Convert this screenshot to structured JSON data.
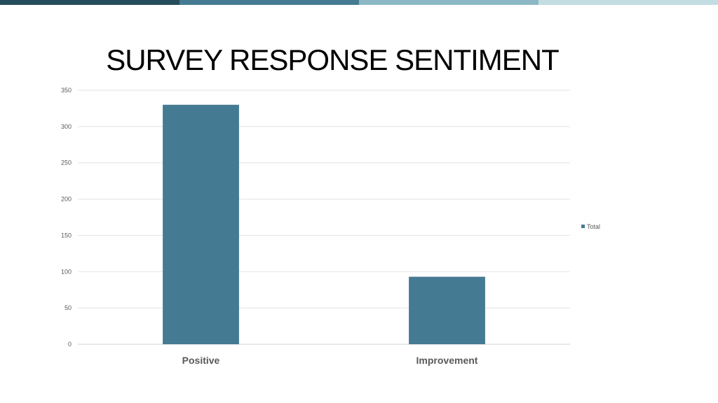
{
  "slide": {
    "accent_colors": [
      "#264d5b",
      "#457b92",
      "#8bb8c4",
      "#c3dde3"
    ]
  },
  "chart_data": {
    "type": "bar",
    "title": "SURVEY RESPONSE SENTIMENT",
    "categories": [
      "Positive",
      "Improvement"
    ],
    "series": [
      {
        "name": "Total",
        "values": [
          330,
          93
        ],
        "color": "#457b92"
      }
    ],
    "ylim": [
      0,
      350
    ],
    "yticks": [
      "0",
      "50",
      "100",
      "150",
      "200",
      "250",
      "300",
      "350"
    ],
    "grid": true,
    "legend": "right"
  }
}
